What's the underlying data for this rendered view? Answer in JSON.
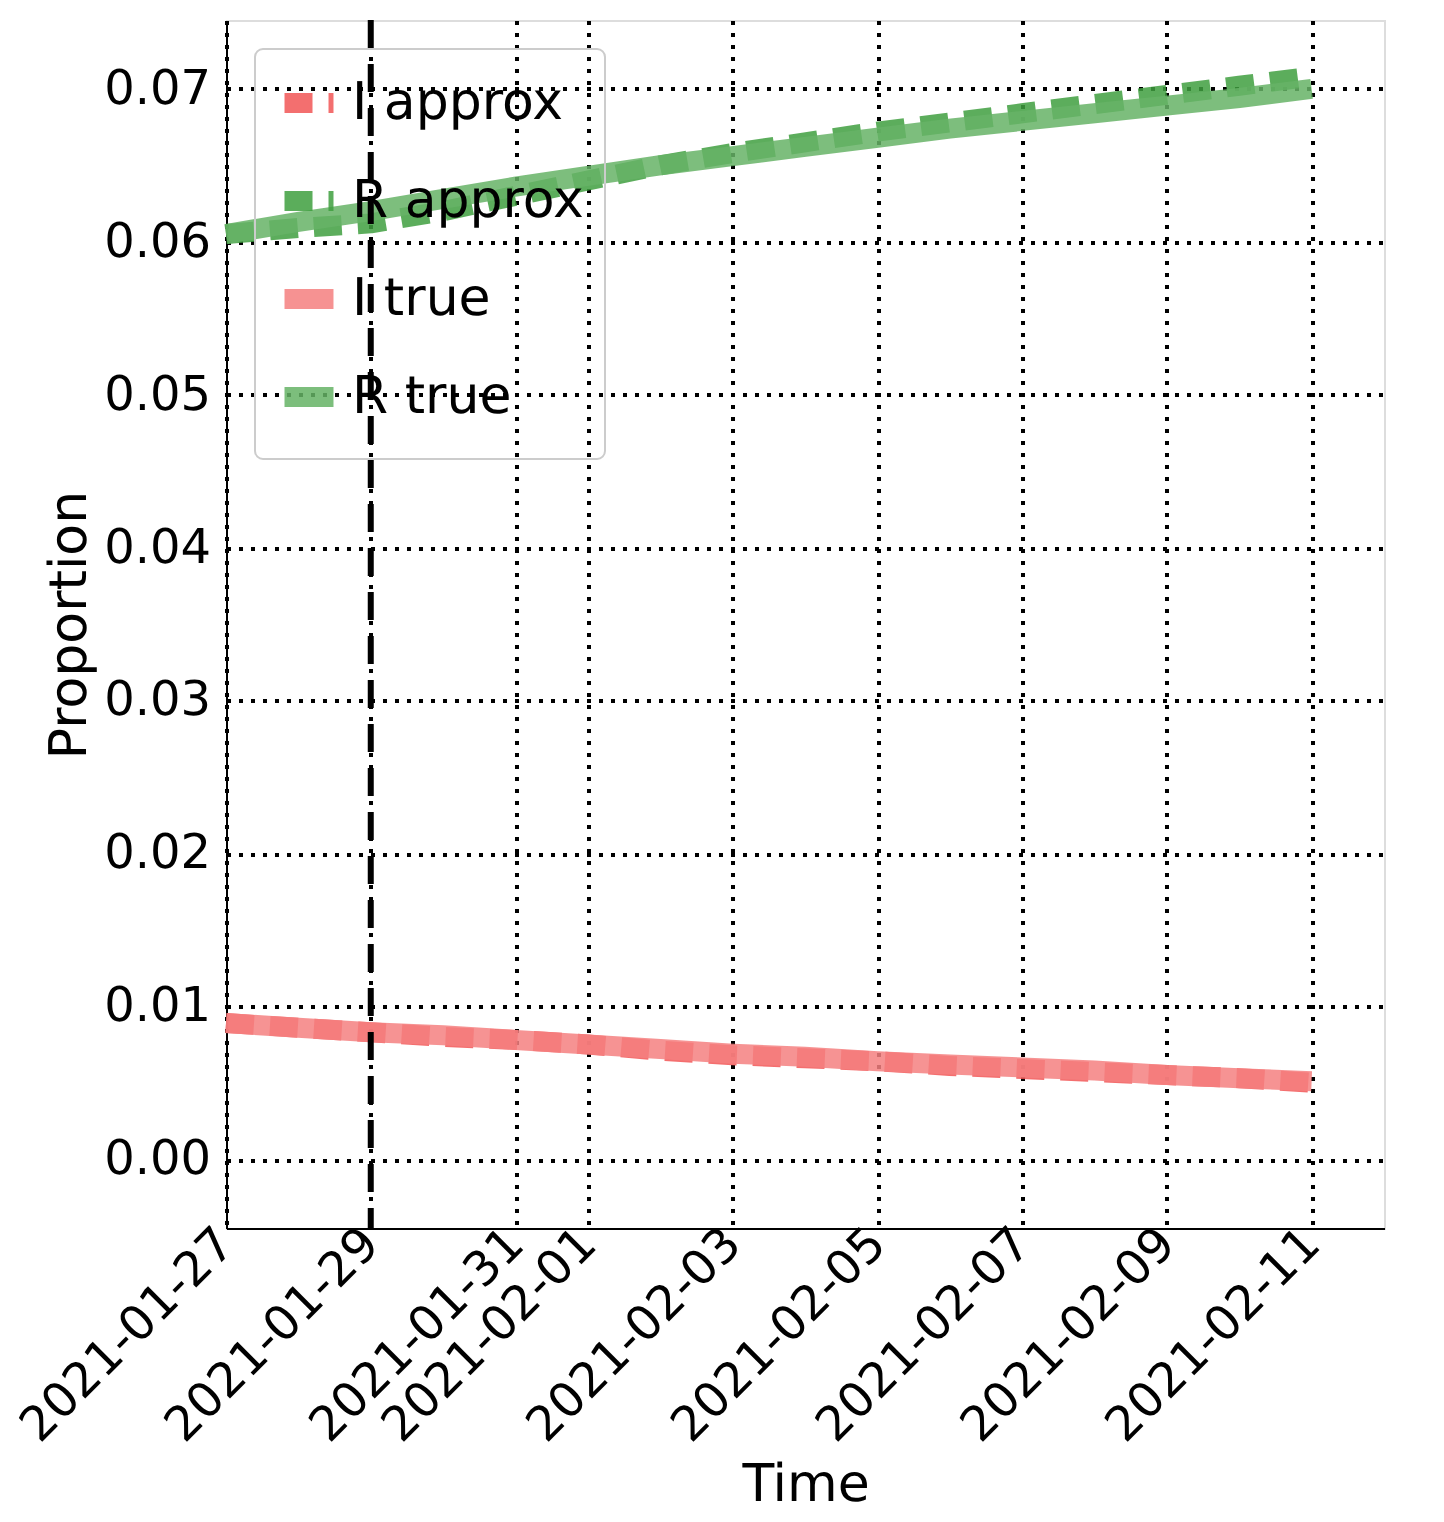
{
  "chart_data": {
    "type": "line",
    "xlabel": "Time",
    "ylabel": "Proportion",
    "x": [
      "2021-01-27",
      "2021-01-28",
      "2021-01-29",
      "2021-01-30",
      "2021-01-31",
      "2021-02-01",
      "2021-02-02",
      "2021-02-03",
      "2021-02-04",
      "2021-02-05",
      "2021-02-06",
      "2021-02-07",
      "2021-02-08",
      "2021-02-09",
      "2021-02-10",
      "2021-02-11"
    ],
    "series": [
      {
        "name": "I approx",
        "color": "#f25656",
        "line_style": "dashed",
        "values": [
          0.0089,
          0.0086,
          0.0083,
          0.008,
          0.0078,
          0.0075,
          0.0071,
          0.0068,
          0.0066,
          0.0064,
          0.0061,
          0.0059,
          0.0057,
          0.0055,
          0.0053,
          0.005
        ]
      },
      {
        "name": "R approx",
        "color": "#3f9f3f",
        "line_style": "dashed",
        "values": [
          0.0605,
          0.0609,
          0.0612,
          0.062,
          0.063,
          0.064,
          0.065,
          0.0658,
          0.0665,
          0.0672,
          0.0678,
          0.0684,
          0.069,
          0.0696,
          0.0702,
          0.0708
        ]
      },
      {
        "name": "I true",
        "color": "#f58080",
        "line_style": "solid",
        "values": [
          0.0089,
          0.0086,
          0.0083,
          0.0081,
          0.0078,
          0.0075,
          0.0072,
          0.0069,
          0.0067,
          0.0064,
          0.0062,
          0.006,
          0.0058,
          0.0055,
          0.0053,
          0.0051
        ]
      },
      {
        "name": "R true",
        "color": "#66b366",
        "line_style": "solid",
        "values": [
          0.0605,
          0.0613,
          0.062,
          0.0628,
          0.0636,
          0.0643,
          0.065,
          0.0656,
          0.0662,
          0.0668,
          0.0674,
          0.0679,
          0.0684,
          0.0689,
          0.0694,
          0.07
        ]
      }
    ],
    "xlim": [
      "2021-01-27",
      "2021-02-12"
    ],
    "xticks": [
      "2021-01-27",
      "2021-01-29",
      "2021-01-31",
      "2021-02-01",
      "2021-02-03",
      "2021-02-05",
      "2021-02-07",
      "2021-02-09",
      "2021-02-11"
    ],
    "ylim": [
      -0.0045,
      0.0745
    ],
    "yticks": [
      {
        "value": 0,
        "label": "0.00"
      },
      {
        "value": 0.01,
        "label": "0.01"
      },
      {
        "value": 0.02,
        "label": "0.02"
      },
      {
        "value": 0.03,
        "label": "0.03"
      },
      {
        "value": 0.04,
        "label": "0.04"
      },
      {
        "value": 0.05,
        "label": "0.05"
      },
      {
        "value": 0.06,
        "label": "0.06"
      },
      {
        "value": 0.07,
        "label": "0.07"
      }
    ],
    "ref_lines": [
      {
        "axis": "x",
        "value": "2021-01-29",
        "color": "#000000",
        "line_style": "dashed"
      }
    ],
    "grid": true,
    "legend": "top left"
  }
}
